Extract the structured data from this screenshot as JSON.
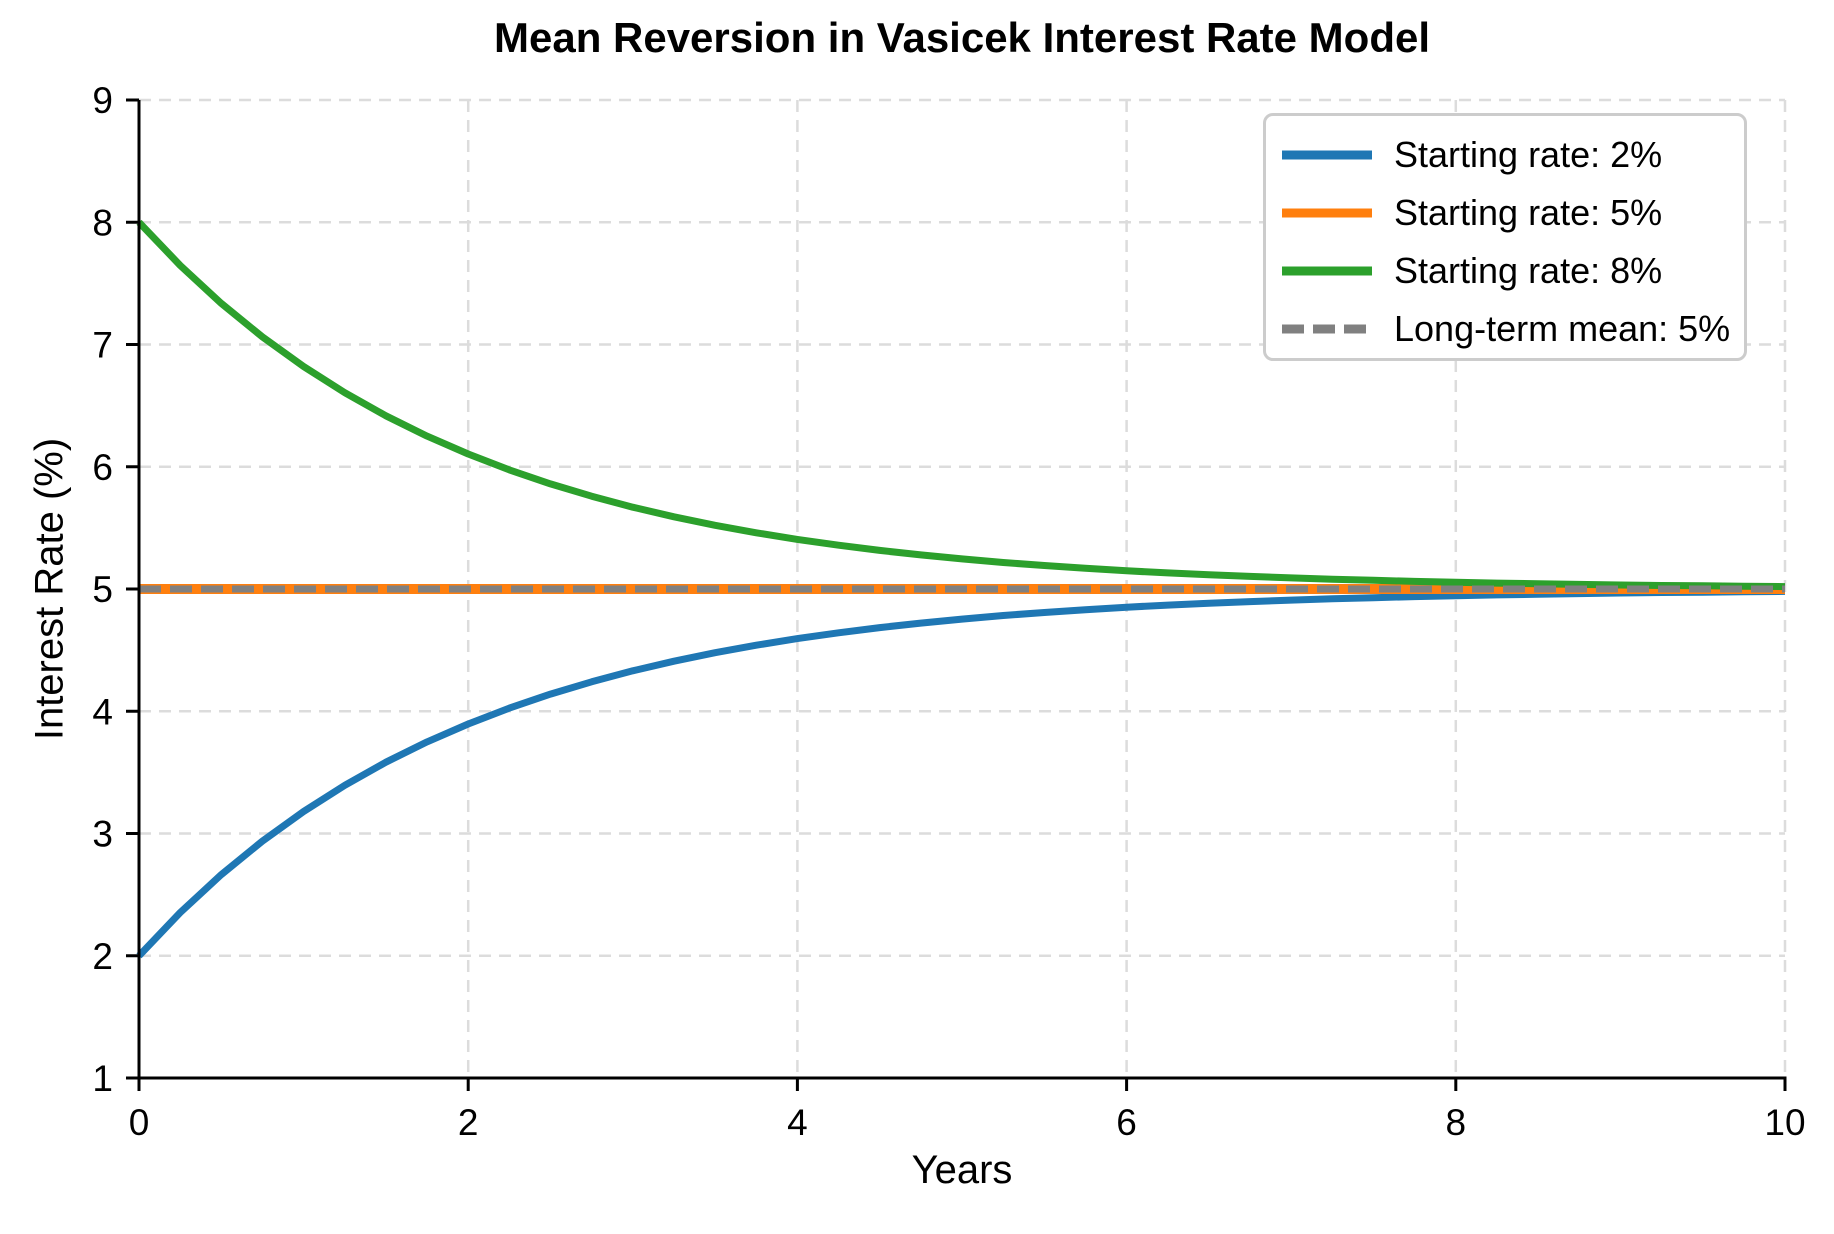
{
  "chart_data": {
    "type": "line",
    "title": "Mean Reversion in Vasicek Interest Rate Model",
    "xlabel": "Years",
    "ylabel": "Interest Rate (%)",
    "xlim": [
      0,
      10
    ],
    "ylim": [
      1,
      9
    ],
    "xticks": [
      0,
      2,
      4,
      6,
      8,
      10
    ],
    "yticks": [
      1,
      2,
      3,
      4,
      5,
      6,
      7,
      8,
      9
    ],
    "grid": true,
    "grid_color": "#dcdcdc",
    "axis_color": "#000000",
    "background_color": "#ffffff",
    "legend_position": "upper right",
    "x": [
      0,
      0.25,
      0.5,
      0.75,
      1,
      1.25,
      1.5,
      1.75,
      2,
      2.25,
      2.5,
      2.75,
      3,
      3.25,
      3.5,
      3.75,
      4,
      4.25,
      4.5,
      4.75,
      5,
      5.25,
      5.5,
      5.75,
      6,
      6.25,
      6.5,
      6.75,
      7,
      7.25,
      7.5,
      7.75,
      8,
      8.25,
      8.5,
      8.75,
      9,
      9.25,
      9.5,
      9.75,
      10
    ],
    "series": [
      {
        "name": "Starting rate: 2%",
        "color": "#1f77b4",
        "dash": null,
        "width": 7,
        "values": [
          2.0,
          2.353,
          2.664,
          2.938,
          3.18,
          3.394,
          3.583,
          3.749,
          3.896,
          4.026,
          4.14,
          4.241,
          4.331,
          4.409,
          4.479,
          4.54,
          4.594,
          4.642,
          4.684,
          4.721,
          4.754,
          4.783,
          4.808,
          4.831,
          4.851,
          4.868,
          4.884,
          4.897,
          4.909,
          4.92,
          4.929,
          4.938,
          4.945,
          4.952,
          4.957,
          4.962,
          4.967,
          4.971,
          4.974,
          4.977,
          4.98
        ]
      },
      {
        "name": "Starting rate: 5%",
        "color": "#ff7f0e",
        "dash": null,
        "width": 10,
        "x": [
          0,
          10
        ],
        "values": [
          5.0,
          5.0
        ]
      },
      {
        "name": "Starting rate: 8%",
        "color": "#2ca02c",
        "dash": null,
        "width": 7,
        "values": [
          8.0,
          7.647,
          7.336,
          7.062,
          6.82,
          6.606,
          6.417,
          6.251,
          6.104,
          5.974,
          5.86,
          5.759,
          5.669,
          5.591,
          5.521,
          5.46,
          5.406,
          5.358,
          5.316,
          5.279,
          5.246,
          5.217,
          5.192,
          5.169,
          5.149,
          5.132,
          5.116,
          5.103,
          5.091,
          5.08,
          5.071,
          5.062,
          5.055,
          5.048,
          5.043,
          5.038,
          5.033,
          5.029,
          5.026,
          5.023,
          5.02
        ]
      },
      {
        "name": "Long-term mean: 5%",
        "color": "#808080",
        "dash": [
          22,
          9
        ],
        "width": 7,
        "x": [
          0,
          10
        ],
        "values": [
          5.0,
          5.0
        ]
      }
    ]
  }
}
